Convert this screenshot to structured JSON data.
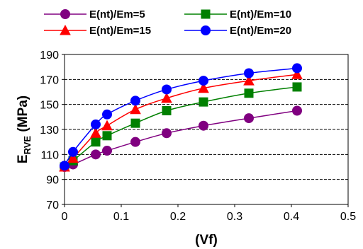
{
  "chart_data": {
    "type": "line",
    "xlabel": "(Vf)",
    "ylabel_main": "E",
    "ylabel_sub": "RVE",
    "ylabel_unit": " (MPa)",
    "xlim": [
      0,
      0.5
    ],
    "ylim": [
      70,
      190
    ],
    "xticks": [
      0,
      0.1,
      0.2,
      0.3,
      0.4,
      0.5
    ],
    "xtick_labels": [
      "0",
      "0.1",
      "0.2",
      "0.3",
      "0.4",
      "0.5"
    ],
    "yticks": [
      70,
      90,
      110,
      130,
      150,
      170,
      190
    ],
    "ytick_labels": [
      "70",
      "90",
      "110",
      "130",
      "150",
      "170",
      "190"
    ],
    "grid": "horizontal dashed",
    "legend_position": "top",
    "series": [
      {
        "name": "E(nt)/Em=5",
        "color": "#800080",
        "marker": "circle",
        "x": [
          0,
          0.015,
          0.055,
          0.075,
          0.125,
          0.18,
          0.245,
          0.325,
          0.41
        ],
        "y": [
          100,
          102,
          110,
          113,
          120,
          127,
          133,
          139,
          145
        ]
      },
      {
        "name": "E(nt)/Em=10",
        "color": "#008000",
        "marker": "square",
        "x": [
          0,
          0.015,
          0.055,
          0.075,
          0.125,
          0.18,
          0.245,
          0.325,
          0.41
        ],
        "y": [
          100,
          105,
          120,
          125,
          135,
          145,
          152,
          159,
          164
        ]
      },
      {
        "name": "E(nt)/Em=15",
        "color": "#ff0000",
        "marker": "triangle",
        "x": [
          0,
          0.015,
          0.055,
          0.075,
          0.125,
          0.18,
          0.245,
          0.325,
          0.41
        ],
        "y": [
          100,
          107,
          127,
          133,
          146,
          155,
          163,
          169,
          174
        ]
      },
      {
        "name": "E(nt)/Em=20",
        "color": "#0000ff",
        "marker": "circle",
        "x": [
          0,
          0.015,
          0.055,
          0.075,
          0.125,
          0.18,
          0.245,
          0.325,
          0.41
        ],
        "y": [
          101,
          112,
          134,
          142,
          153,
          162,
          169,
          175,
          179
        ]
      }
    ]
  }
}
